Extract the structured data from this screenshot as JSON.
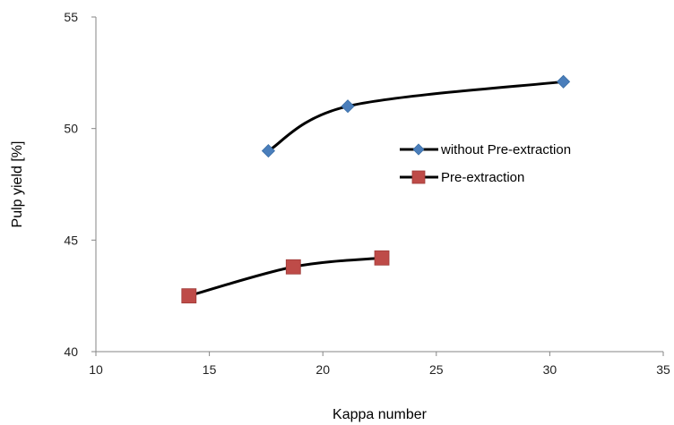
{
  "chart_data": {
    "type": "line",
    "title": "",
    "xlabel": "Kappa number",
    "ylabel": "Pulp yield [%]",
    "xlim": [
      10,
      35
    ],
    "ylim": [
      40,
      55
    ],
    "xticks": [
      10,
      15,
      20,
      25,
      30,
      35
    ],
    "yticks": [
      40,
      45,
      50,
      55
    ],
    "grid": false,
    "legend_position": "right",
    "series": [
      {
        "name": "without Pre-extraction",
        "marker": "diamond",
        "marker_color": "#4a7ebb",
        "line_color": "#000000",
        "x": [
          17.6,
          21.1,
          30.6
        ],
        "y": [
          49.0,
          51.0,
          52.1
        ]
      },
      {
        "name": "Pre-extraction",
        "marker": "square",
        "marker_color": "#be4b48",
        "line_color": "#000000",
        "x": [
          14.1,
          18.7,
          22.6
        ],
        "y": [
          42.5,
          43.8,
          44.2
        ]
      }
    ]
  }
}
